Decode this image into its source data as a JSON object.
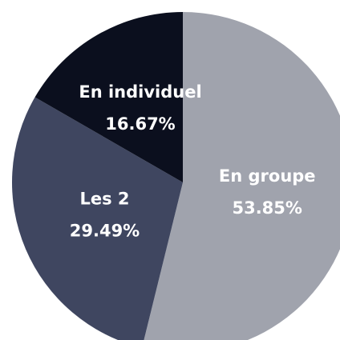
{
  "chart_data": {
    "type": "pie",
    "categories": [
      "En groupe",
      "Les 2",
      "En individuel"
    ],
    "values": [
      53.85,
      29.49,
      16.67
    ],
    "value_labels": [
      "53.85%",
      "29.49%",
      "16.67%"
    ],
    "colors": [
      "#a0a3ad",
      "#3f4660",
      "#0b0f1e"
    ]
  }
}
